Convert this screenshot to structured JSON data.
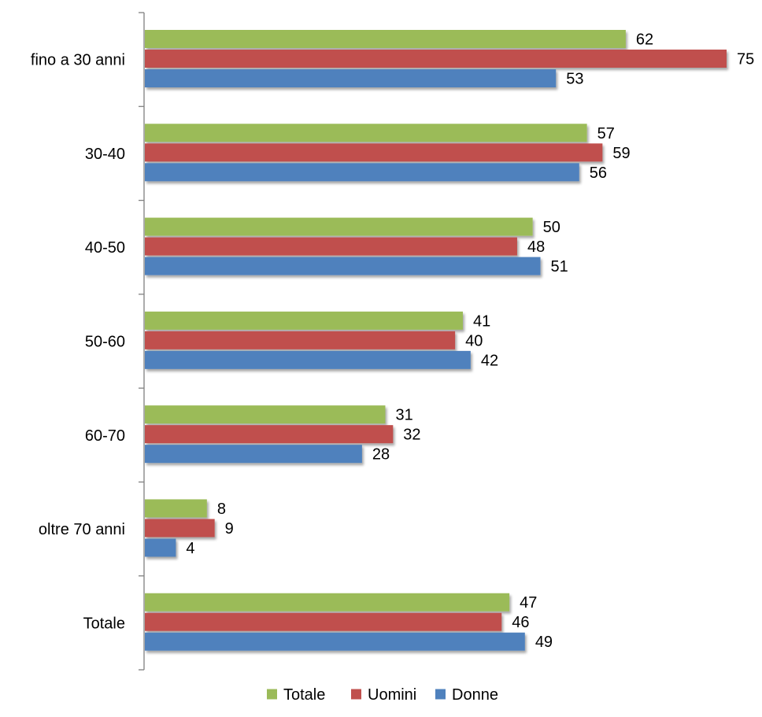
{
  "chart_data": {
    "type": "bar",
    "orientation": "horizontal",
    "title": "",
    "xlabel": "",
    "ylabel": "",
    "categories": [
      "fino a 30 anni",
      "30-40",
      "40-50",
      "50-60",
      "60-70",
      "oltre 70 anni",
      "Totale"
    ],
    "series": [
      {
        "name": "Totale",
        "color": "#9BBB59",
        "values": [
          62,
          57,
          50,
          41,
          31,
          8,
          47
        ]
      },
      {
        "name": "Uomini",
        "color": "#C0504D",
        "values": [
          75,
          59,
          48,
          40,
          32,
          9,
          46
        ]
      },
      {
        "name": "Donne",
        "color": "#4F81BD",
        "values": [
          53,
          56,
          51,
          42,
          28,
          4,
          49
        ]
      }
    ],
    "xlim": [
      0,
      75
    ],
    "grid": false,
    "data_labels": true,
    "legend_position": "bottom"
  }
}
